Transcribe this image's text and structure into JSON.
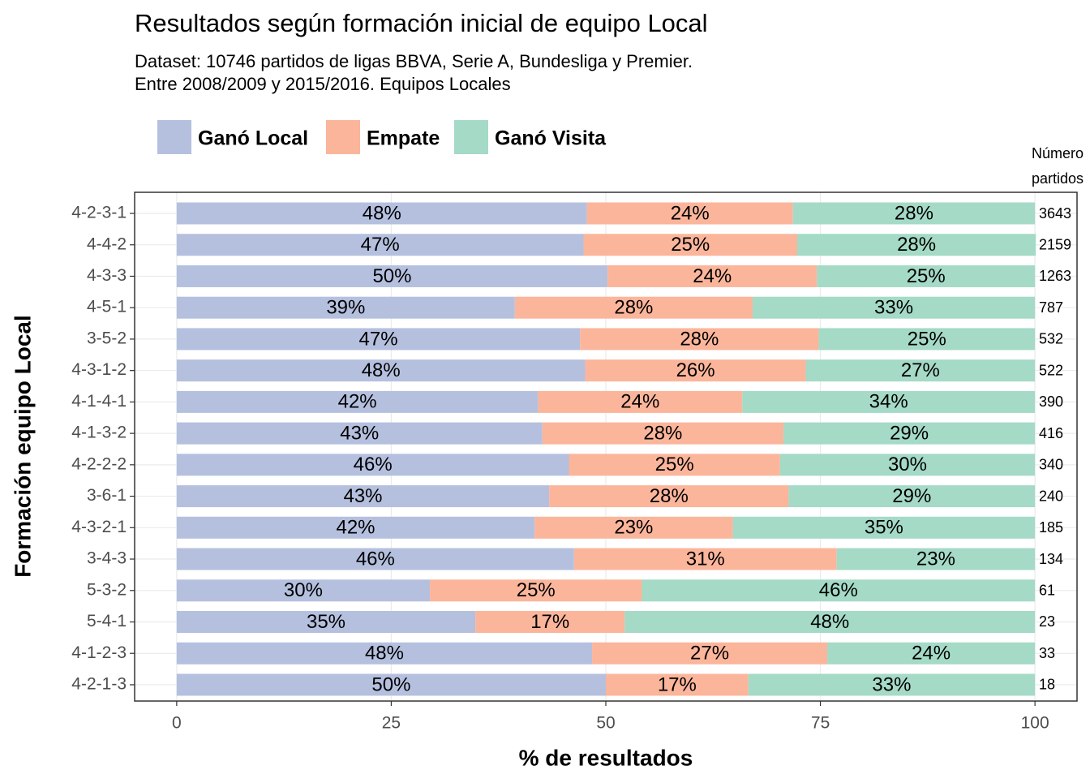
{
  "chart_data": {
    "type": "stacked-barh",
    "title": "Resultados según formación inicial de equipo Local",
    "subtitle": [
      "Dataset: 10746 partidos de ligas BBVA, Serie A, Bundesliga y Premier.",
      "Entre 2008/2009 y 2015/2016. Equipos Locales"
    ],
    "x_label": "% de resultados",
    "y_label": "Formación equipo Local",
    "categories": [
      "4-2-3-1",
      "4-4-2",
      "4-3-3",
      "4-5-1",
      "3-5-2",
      "4-3-1-2",
      "4-1-4-1",
      "4-1-3-2",
      "4-2-2-2",
      "3-6-1",
      "4-3-2-1",
      "3-4-3",
      "5-3-2",
      "5-4-1",
      "4-1-2-3",
      "4-2-1-3"
    ],
    "series": [
      {
        "name": "Ganó Local",
        "color": "#b5c0df",
        "values": [
          47.8,
          47.4,
          50.2,
          39.4,
          47.0,
          47.6,
          42.1,
          42.6,
          45.7,
          43.4,
          41.7,
          46.3,
          29.5,
          34.8,
          48.4,
          50.0
        ],
        "value_labels": [
          "48%",
          "47%",
          "50%",
          "39%",
          "47%",
          "48%",
          "42%",
          "43%",
          "46%",
          "43%",
          "42%",
          "46%",
          "30%",
          "35%",
          "48%",
          "50%"
        ]
      },
      {
        "name": "Empate",
        "color": "#fbb59b",
        "values": [
          24.0,
          24.9,
          24.4,
          27.7,
          27.8,
          25.7,
          23.8,
          28.1,
          24.6,
          27.9,
          23.1,
          30.6,
          24.7,
          17.4,
          27.4,
          16.6
        ],
        "value_labels": [
          "24%",
          "25%",
          "24%",
          "28%",
          "28%",
          "26%",
          "24%",
          "28%",
          "25%",
          "28%",
          "23%",
          "31%",
          "25%",
          "17%",
          "27%",
          "17%"
        ]
      },
      {
        "name": "Ganó Visita",
        "color": "#a4dac6",
        "values": [
          28.2,
          27.8,
          25.4,
          32.9,
          25.2,
          26.7,
          34.1,
          29.3,
          29.7,
          28.7,
          35.2,
          23.1,
          45.8,
          47.8,
          24.2,
          33.4
        ],
        "value_labels": [
          "28%",
          "28%",
          "25%",
          "33%",
          "25%",
          "27%",
          "34%",
          "29%",
          "30%",
          "29%",
          "35%",
          "23%",
          "46%",
          "48%",
          "24%",
          "33%"
        ]
      }
    ],
    "n_header": [
      "Número",
      "partidos"
    ],
    "n_partidos": [
      3643,
      2159,
      1263,
      787,
      532,
      522,
      390,
      416,
      340,
      240,
      185,
      134,
      61,
      23,
      33,
      18
    ],
    "xlim": [
      -4.9,
      104.9
    ],
    "xticks": [
      0,
      25,
      50,
      75,
      100
    ],
    "grid": true,
    "legend": "top"
  }
}
